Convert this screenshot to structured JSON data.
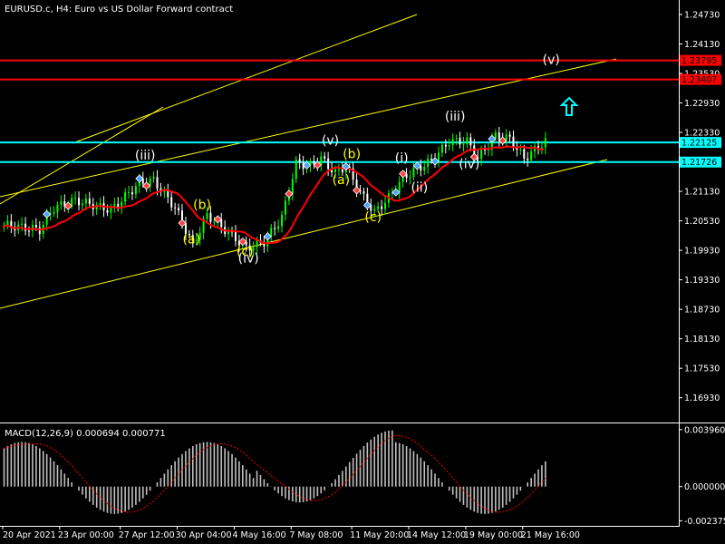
{
  "title": "EURUSD.c, H4:  Euro vs US Dollar Forward contract",
  "macd_title": "MACD(12,26,9) 0.000694 0.000771",
  "price_axis": [
    {
      "label": "1.24730",
      "price": 1.2473
    },
    {
      "label": "1.24130",
      "price": 1.2413
    },
    {
      "label": "1.23530",
      "price": 1.2353
    },
    {
      "label": "1.22930",
      "price": 1.2293
    },
    {
      "label": "1.22330",
      "price": 1.2233
    },
    {
      "label": "1.21130",
      "price": 1.2113
    },
    {
      "label": "1.20530",
      "price": 1.2053
    },
    {
      "label": "1.19930",
      "price": 1.1993
    },
    {
      "label": "1.19330",
      "price": 1.1933
    },
    {
      "label": "1.18730",
      "price": 1.1873
    },
    {
      "label": "1.18130",
      "price": 1.1813
    },
    {
      "label": "1.17530",
      "price": 1.1753
    },
    {
      "label": "1.16930",
      "price": 1.1693
    }
  ],
  "price_range": [
    1.165,
    1.2495
  ],
  "level_lines": [
    {
      "price": 1.23795,
      "label": "1.23795",
      "color": "#ff0000"
    },
    {
      "price": 1.23407,
      "label": "1.23407",
      "color": "#ff0000"
    },
    {
      "price": 1.22125,
      "label": "1.22125",
      "color": "#00ffff"
    },
    {
      "price": 1.21726,
      "label": "1.21726",
      "color": "#00ffff"
    }
  ],
  "macd_axis": [
    {
      "label": "0.003960",
      "value": 0.00396
    },
    {
      "label": "0.000000",
      "value": 0.0
    },
    {
      "label": "-0.002375",
      "value": -0.002375
    }
  ],
  "macd_range": [
    -0.0026,
    0.0042
  ],
  "time_axis": [
    {
      "label": "20 Apr 2021",
      "bar": 0
    },
    {
      "label": "23 Apr 00:00",
      "bar": 16
    },
    {
      "label": "27 Apr 12:00",
      "bar": 33
    },
    {
      "label": "30 Apr 04:00",
      "bar": 49
    },
    {
      "label": "4 May 16:00",
      "bar": 65
    },
    {
      "label": "7 May 08:00",
      "bar": 81
    },
    {
      "label": "11 May 20:00",
      "bar": 98
    },
    {
      "label": "14 May 12:00",
      "bar": 114
    },
    {
      "label": "19 May 00:00",
      "bar": 130
    },
    {
      "label": "21 May 16:00",
      "bar": 146
    }
  ],
  "wave_labels": [
    {
      "text": "(iii)",
      "bar": 40,
      "price": 1.2178,
      "color": "#ffffff"
    },
    {
      "text": "(b)",
      "bar": 56,
      "price": 1.2077,
      "color": "#ffff00"
    },
    {
      "text": "(a)",
      "bar": 53,
      "price": 1.2007,
      "color": "#ffff00"
    },
    {
      "text": "(c)",
      "bar": 68,
      "price": 1.1982,
      "color": "#ffff00"
    },
    {
      "text": "(iv)",
      "bar": 69,
      "price": 1.1968,
      "color": "#ffffff"
    },
    {
      "text": "(v)",
      "bar": 92,
      "price": 1.2208,
      "color": "#ffffff"
    },
    {
      "text": "(b)",
      "bar": 98,
      "price": 1.218,
      "color": "#ffff00"
    },
    {
      "text": "(a)",
      "bar": 95,
      "price": 1.2128,
      "color": "#ffff00"
    },
    {
      "text": "(c)",
      "bar": 104,
      "price": 1.2052,
      "color": "#ffff00"
    },
    {
      "text": "(i)",
      "bar": 112,
      "price": 1.2172,
      "color": "#ffffff"
    },
    {
      "text": "(ii)",
      "bar": 117,
      "price": 1.2112,
      "color": "#ffffff"
    },
    {
      "text": "(iii)",
      "bar": 127,
      "price": 1.2257,
      "color": "#ffffff"
    },
    {
      "text": "(iv)",
      "bar": 131,
      "price": 1.216,
      "color": "#ffffff"
    },
    {
      "text": "(v)",
      "bar": 154,
      "price": 1.2372,
      "color": "#ffffff"
    }
  ],
  "colors": {
    "background": "#000000",
    "bull_candle": "#00ff00",
    "bear_candle": "#ffffff",
    "moving_average": "#ff0000",
    "trend_line": "#ffff00",
    "macd_histogram": "#c0c0c0",
    "macd_signal": "#ff0000",
    "axis_text": "#ffffff",
    "up_arrow": "#00ffff"
  },
  "icons": [
    "up-arrow-icon"
  ]
}
